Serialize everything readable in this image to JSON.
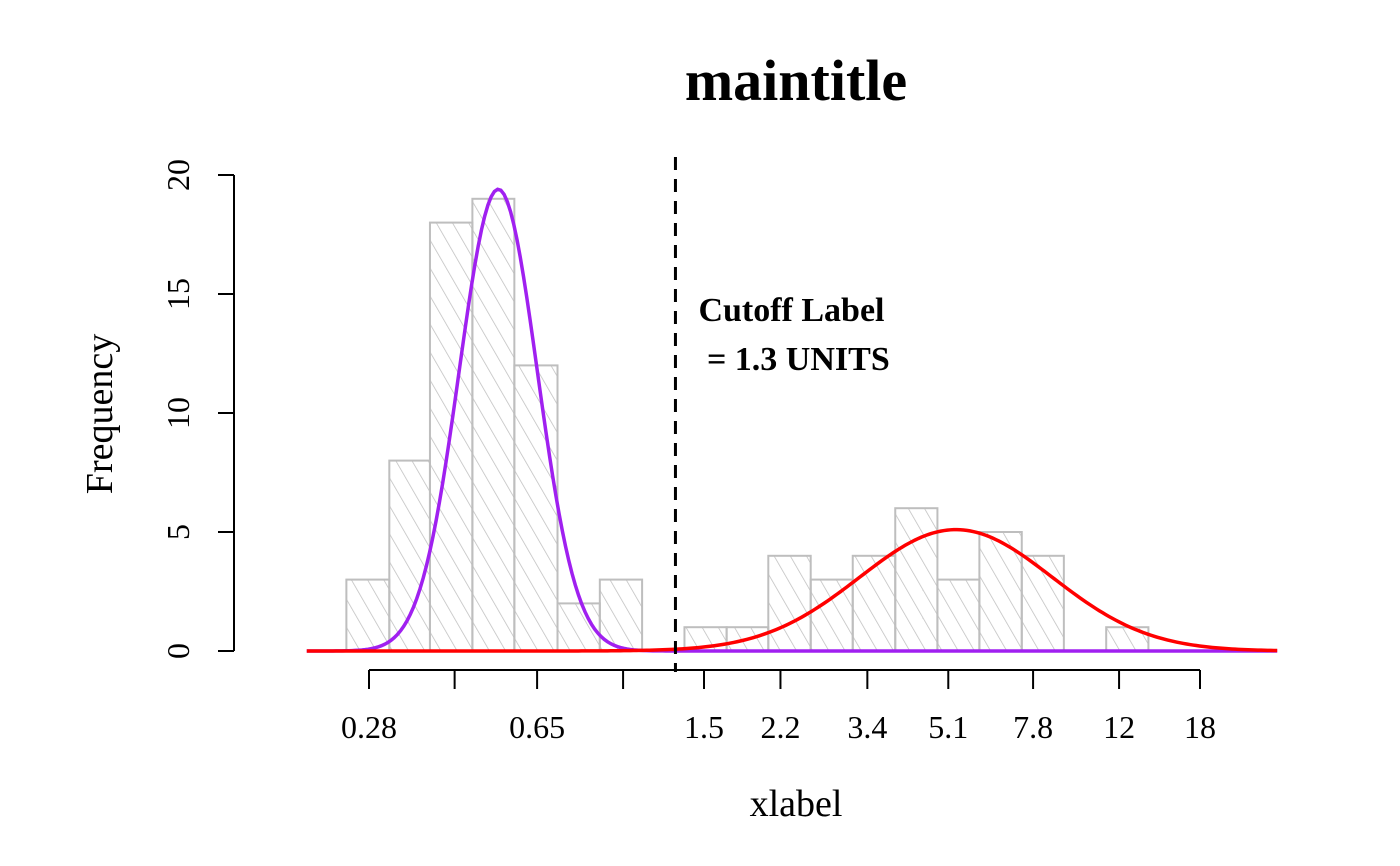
{
  "chart_data": {
    "type": "histogram",
    "title": "maintitle",
    "xlabel": "xlabel",
    "ylabel": "Frequency",
    "x_scale": "log",
    "x_tick_labels": [
      "0.28",
      "",
      "0.65",
      "",
      "1.5",
      "2.2",
      "3.4",
      "5.1",
      "7.8",
      "12",
      "18"
    ],
    "x_tick_values": [
      0.28,
      0.43,
      0.65,
      1.0,
      1.5,
      2.2,
      3.4,
      5.1,
      7.8,
      12,
      18
    ],
    "y_ticks": [
      0,
      5,
      10,
      15,
      20
    ],
    "ylim": [
      0,
      20
    ],
    "bins": [
      {
        "x_start": 0.25,
        "x_end": 0.31,
        "count": 3
      },
      {
        "x_start": 0.31,
        "x_end": 0.38,
        "count": 8
      },
      {
        "x_start": 0.38,
        "x_end": 0.47,
        "count": 18
      },
      {
        "x_start": 0.47,
        "x_end": 0.58,
        "count": 19
      },
      {
        "x_start": 0.58,
        "x_end": 0.72,
        "count": 12
      },
      {
        "x_start": 0.72,
        "x_end": 0.89,
        "count": 2
      },
      {
        "x_start": 0.89,
        "x_end": 1.1,
        "count": 3
      },
      {
        "x_start": 1.36,
        "x_end": 1.68,
        "count": 1
      },
      {
        "x_start": 1.68,
        "x_end": 2.07,
        "count": 1
      },
      {
        "x_start": 2.07,
        "x_end": 2.56,
        "count": 4
      },
      {
        "x_start": 2.56,
        "x_end": 3.16,
        "count": 3
      },
      {
        "x_start": 3.16,
        "x_end": 3.91,
        "count": 4
      },
      {
        "x_start": 3.91,
        "x_end": 4.83,
        "count": 6
      },
      {
        "x_start": 4.83,
        "x_end": 5.96,
        "count": 3
      },
      {
        "x_start": 5.96,
        "x_end": 7.37,
        "count": 5
      },
      {
        "x_start": 7.37,
        "x_end": 9.1,
        "count": 4
      },
      {
        "x_start": 11.25,
        "x_end": 13.9,
        "count": 1
      }
    ],
    "curves": [
      {
        "color": "#a020f0",
        "mean_x": 0.535,
        "peak": 19.4,
        "log_sd": 0.085
      },
      {
        "color": "#ff0000",
        "mean_x": 5.3,
        "peak": 5.1,
        "log_sd": 0.21
      }
    ],
    "cutoff": {
      "x": 1.3,
      "label_lines": [
        "Cutoff Label",
        " = 1.3 UNITS"
      ]
    },
    "colors": {
      "bar_stroke": "#bebebe",
      "hatch": "#bebebe",
      "cutoff_line": "#000000"
    }
  }
}
